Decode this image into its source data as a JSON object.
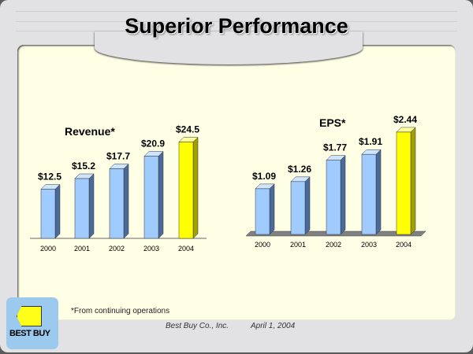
{
  "title": "Superior Performance",
  "footnote": "*From continuing operations",
  "company": "Best Buy Co., Inc.",
  "date": "April 1, 2004",
  "logo_text": "BEST BUY",
  "colors": {
    "bar": "#a0cbff",
    "highlight": "#ffff00",
    "panel": "#ffffe6"
  },
  "chart_data": [
    {
      "type": "bar",
      "title": "Revenue*",
      "categories": [
        "2000",
        "2001",
        "2002",
        "2003",
        "2004"
      ],
      "values": [
        12.5,
        15.2,
        17.7,
        20.9,
        24.5
      ],
      "labels": [
        "$12.5",
        "$15.2",
        "$17.7",
        "$20.9",
        "$24.5"
      ],
      "highlight_index": 4
    },
    {
      "type": "bar",
      "title": "EPS*",
      "categories": [
        "2000",
        "2001",
        "2002",
        "2003",
        "2004"
      ],
      "values": [
        1.09,
        1.26,
        1.77,
        1.91,
        2.44
      ],
      "labels": [
        "$1.09",
        "$1.26",
        "$1.77",
        "$1.91",
        "$2.44"
      ],
      "highlight_index": 4
    }
  ]
}
